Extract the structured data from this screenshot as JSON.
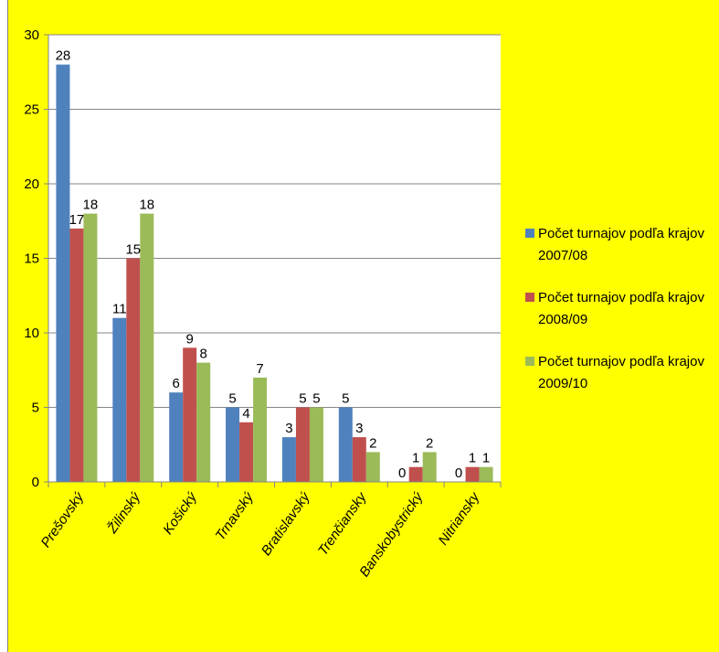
{
  "chart_data": {
    "type": "bar",
    "categories": [
      "Prešovský",
      "Žilinský",
      "Košický",
      "Trnavský",
      "Bratislavský",
      "Trenčiansky",
      "Banskobystrický",
      "Nitriansky"
    ],
    "series": [
      {
        "name_line1": "Počet turnajov podľa krajov",
        "name_line2": "2007/08",
        "values": [
          28,
          11,
          6,
          5,
          3,
          5,
          0,
          0
        ]
      },
      {
        "name_line1": "Počet turnajov podľa krajov",
        "name_line2": "2008/09",
        "values": [
          17,
          15,
          9,
          4,
          5,
          3,
          1,
          1
        ]
      },
      {
        "name_line1": "Počet turnajov podľa krajov",
        "name_line2": "2009/10",
        "values": [
          18,
          18,
          8,
          7,
          5,
          2,
          2,
          1
        ]
      }
    ],
    "ylim": [
      0,
      30
    ],
    "yticks": [
      "0",
      "5",
      "10",
      "15",
      "20",
      "25",
      "30"
    ],
    "grid": true,
    "legend_position": "right",
    "colors": {
      "background": "#ffff00",
      "plot_area": "#ffffff",
      "series": [
        "#4f81bd",
        "#c0504d",
        "#9bbb59"
      ],
      "gridline": "#868686"
    }
  }
}
